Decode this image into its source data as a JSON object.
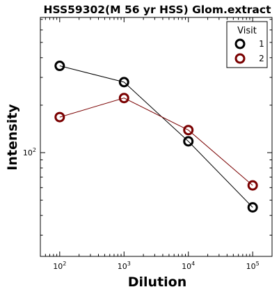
{
  "chart_data": {
    "type": "line",
    "title": "HSS59302(M 56 yr HSS) Glom.extract",
    "xlabel": "Dilution",
    "ylabel": "Intensity",
    "x_scale": "log",
    "y_scale": "log",
    "xlim": [
      50,
      200000
    ],
    "ylim": [
      22,
      720
    ],
    "x": [
      100,
      1000,
      10000,
      100000
    ],
    "x_tick_labels": [
      {
        "base": "10",
        "exp": "2",
        "value": 100
      },
      {
        "base": "10",
        "exp": "3",
        "value": 1000
      },
      {
        "base": "10",
        "exp": "4",
        "value": 10000
      },
      {
        "base": "10",
        "exp": "5",
        "value": 100000
      }
    ],
    "y_tick_labels": [
      {
        "base": "10",
        "exp": "2",
        "value": 100
      }
    ],
    "legend": {
      "title": "Visit",
      "position": "top-right"
    },
    "series": [
      {
        "name": "1",
        "color": "#000000",
        "values": [
          355,
          280,
          118,
          45
        ]
      },
      {
        "name": "2",
        "color": "#7a0000",
        "values": [
          168,
          222,
          139,
          62
        ]
      }
    ],
    "grid": false
  }
}
